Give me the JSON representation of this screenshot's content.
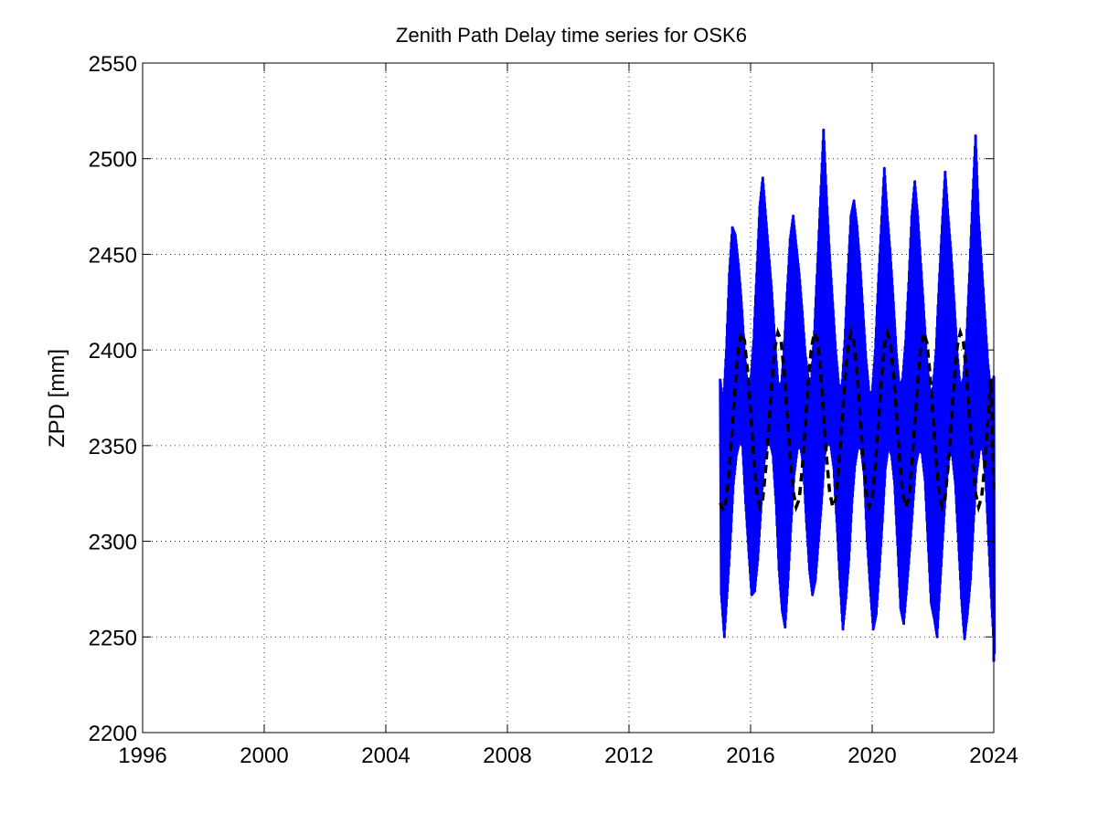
{
  "chart_data": {
    "type": "line",
    "title": "Zenith Path Delay time series for OSK6",
    "xlabel": "",
    "ylabel": "ZPD [mm]",
    "xlim": [
      1996,
      2024
    ],
    "ylim": [
      2200,
      2550
    ],
    "xticks": [
      1996,
      2000,
      2004,
      2008,
      2012,
      2016,
      2020,
      2024
    ],
    "yticks": [
      2200,
      2250,
      2300,
      2350,
      2400,
      2450,
      2500,
      2550
    ],
    "grid": true,
    "series": [
      {
        "style": "solid",
        "color": "#0000ff",
        "x": [
          2015.0,
          2015.1,
          2015.2,
          2015.3,
          2015.4,
          2015.5,
          2015.6,
          2015.7,
          2015.8,
          2015.9,
          2016.0,
          2016.1,
          2016.2,
          2016.3,
          2016.4,
          2016.5,
          2016.6,
          2016.7,
          2016.8,
          2016.9,
          2017.0,
          2017.1,
          2017.2,
          2017.3,
          2017.4,
          2017.5,
          2017.6,
          2017.7,
          2017.8,
          2017.9,
          2018.0,
          2018.1,
          2018.2,
          2018.3,
          2018.4,
          2018.5,
          2018.6,
          2018.7,
          2018.8,
          2018.9,
          2019.0,
          2019.1,
          2019.2,
          2019.3,
          2019.4,
          2019.5,
          2019.6,
          2019.7,
          2019.8,
          2019.9,
          2020.0,
          2020.1,
          2020.2,
          2020.3,
          2020.4,
          2020.5,
          2020.6,
          2020.7,
          2020.8,
          2020.9,
          2021.0,
          2021.1,
          2021.2,
          2021.3,
          2021.4,
          2021.5,
          2021.6,
          2021.7,
          2021.8,
          2021.9,
          2022.0,
          2022.1,
          2022.2,
          2022.3,
          2022.4,
          2022.5,
          2022.6,
          2022.7,
          2022.8,
          2022.9,
          2023.0,
          2023.1,
          2023.2,
          2023.3,
          2023.4,
          2023.5,
          2023.6,
          2023.7,
          2023.8,
          2023.9,
          2024.0
        ],
        "min": [
          2272,
          2250,
          2274,
          2300,
          2330,
          2345,
          2352,
          2350,
          2320,
          2295,
          2272,
          2274,
          2290,
          2315,
          2340,
          2350,
          2352,
          2345,
          2320,
          2285,
          2264,
          2255,
          2280,
          2310,
          2335,
          2348,
          2350,
          2340,
          2310,
          2285,
          2272,
          2280,
          2300,
          2320,
          2345,
          2352,
          2350,
          2338,
          2310,
          2280,
          2254,
          2270,
          2290,
          2320,
          2340,
          2350,
          2348,
          2335,
          2300,
          2275,
          2254,
          2262,
          2285,
          2310,
          2338,
          2350,
          2345,
          2330,
          2298,
          2265,
          2257,
          2275,
          2295,
          2318,
          2340,
          2348,
          2346,
          2332,
          2300,
          2268,
          2260,
          2250,
          2278,
          2305,
          2330,
          2345,
          2345,
          2330,
          2300,
          2270,
          2249,
          2262,
          2280,
          2310,
          2335,
          2348,
          2348,
          2332,
          2298,
          2265,
          2237
        ],
        "max": [
          2385,
          2370,
          2400,
          2440,
          2464,
          2460,
          2445,
          2425,
          2400,
          2380,
          2383,
          2405,
          2440,
          2475,
          2490,
          2470,
          2450,
          2430,
          2405,
          2383,
          2380,
          2400,
          2430,
          2458,
          2470,
          2455,
          2440,
          2420,
          2398,
          2385,
          2385,
          2410,
          2445,
          2480,
          2515,
          2480,
          2450,
          2425,
          2400,
          2382,
          2380,
          2405,
          2440,
          2470,
          2478,
          2465,
          2445,
          2420,
          2395,
          2378,
          2378,
          2400,
          2435,
          2465,
          2495,
          2470,
          2450,
          2425,
          2398,
          2380,
          2385,
          2405,
          2435,
          2470,
          2488,
          2470,
          2445,
          2420,
          2395,
          2378,
          2380,
          2400,
          2435,
          2465,
          2493,
          2470,
          2450,
          2425,
          2398,
          2380,
          2385,
          2405,
          2440,
          2478,
          2512,
          2470,
          2445,
          2420,
          2395,
          2378,
          2386
        ]
      },
      {
        "style": "dashed",
        "color": "#000000",
        "x": [
          2015.0,
          2015.1,
          2015.2,
          2015.3,
          2015.4,
          2015.5,
          2015.6,
          2015.7,
          2015.8,
          2015.9,
          2016.0,
          2016.1,
          2016.2,
          2016.3,
          2016.4,
          2016.5,
          2016.6,
          2016.7,
          2016.8,
          2016.9,
          2017.0,
          2017.1,
          2017.2,
          2017.3,
          2017.4,
          2017.5,
          2017.6,
          2017.7,
          2017.8,
          2017.9,
          2018.0,
          2018.1,
          2018.2,
          2018.3,
          2018.4,
          2018.5,
          2018.6,
          2018.7,
          2018.8,
          2018.9,
          2019.0,
          2019.1,
          2019.2,
          2019.3,
          2019.4,
          2019.5,
          2019.6,
          2019.7,
          2019.8,
          2019.9,
          2020.0,
          2020.1,
          2020.2,
          2020.3,
          2020.4,
          2020.5,
          2020.6,
          2020.7,
          2020.8,
          2020.9,
          2021.0,
          2021.1,
          2021.2,
          2021.3,
          2021.4,
          2021.5,
          2021.6,
          2021.7,
          2021.8,
          2021.9,
          2022.0,
          2022.1,
          2022.2,
          2022.3,
          2022.4,
          2022.5,
          2022.6,
          2022.7,
          2022.8,
          2022.9,
          2023.0,
          2023.1,
          2023.2,
          2023.3,
          2023.4,
          2023.5,
          2023.6,
          2023.7,
          2023.8,
          2023.9,
          2024.0
        ],
        "y": [
          2320,
          2316,
          2322,
          2338,
          2360,
          2383,
          2401,
          2409,
          2405,
          2389,
          2367,
          2344,
          2326,
          2318,
          2322,
          2338,
          2361,
          2383,
          2401,
          2409,
          2405,
          2389,
          2367,
          2344,
          2326,
          2318,
          2322,
          2338,
          2361,
          2384,
          2401,
          2409,
          2405,
          2389,
          2366,
          2344,
          2326,
          2318,
          2322,
          2338,
          2361,
          2384,
          2401,
          2409,
          2404,
          2388,
          2366,
          2343,
          2326,
          2318,
          2322,
          2339,
          2361,
          2384,
          2402,
          2409,
          2404,
          2388,
          2366,
          2343,
          2325,
          2318,
          2322,
          2339,
          2362,
          2384,
          2402,
          2409,
          2404,
          2388,
          2366,
          2343,
          2325,
          2318,
          2323,
          2339,
          2362,
          2385,
          2402,
          2409,
          2404,
          2388,
          2365,
          2343,
          2325,
          2318,
          2323,
          2339,
          2362,
          2385,
          2327
        ]
      }
    ]
  }
}
